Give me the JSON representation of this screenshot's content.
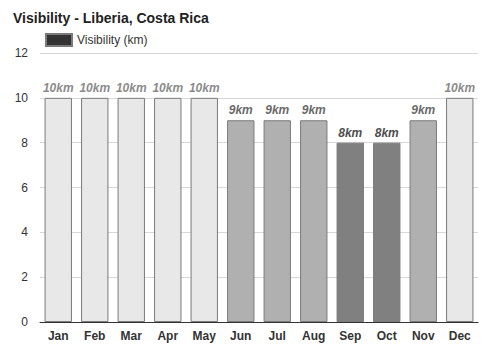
{
  "chart_data": {
    "type": "bar",
    "title": "Visibility - Liberia, Costa Rica",
    "categories": [
      "Jan",
      "Feb",
      "Mar",
      "Apr",
      "May",
      "Jun",
      "Jul",
      "Aug",
      "Sep",
      "Oct",
      "Nov",
      "Dec"
    ],
    "series": [
      {
        "name": "Visibility (km)",
        "color": "#333333",
        "values": [
          10,
          10,
          10,
          10,
          10,
          9,
          9,
          9,
          8,
          8,
          9,
          10
        ],
        "value_labels": [
          "10km",
          "10km",
          "10km",
          "10km",
          "10km",
          "9km",
          "9km",
          "9km",
          "8km",
          "8km",
          "9km",
          "10km"
        ],
        "colors": [
          "#e8e8e8",
          "#e8e8e8",
          "#e8e8e8",
          "#e8e8e8",
          "#e8e8e8",
          "#b0b0b0",
          "#b0b0b0",
          "#b0b0b0",
          "#808080",
          "#808080",
          "#b0b0b0",
          "#e8e8e8"
        ]
      }
    ],
    "ylim": [
      0,
      12
    ],
    "yticks": [
      0,
      2,
      4,
      6,
      8,
      10,
      12
    ],
    "grid": true,
    "data_labels": true,
    "legend": "top-left"
  }
}
